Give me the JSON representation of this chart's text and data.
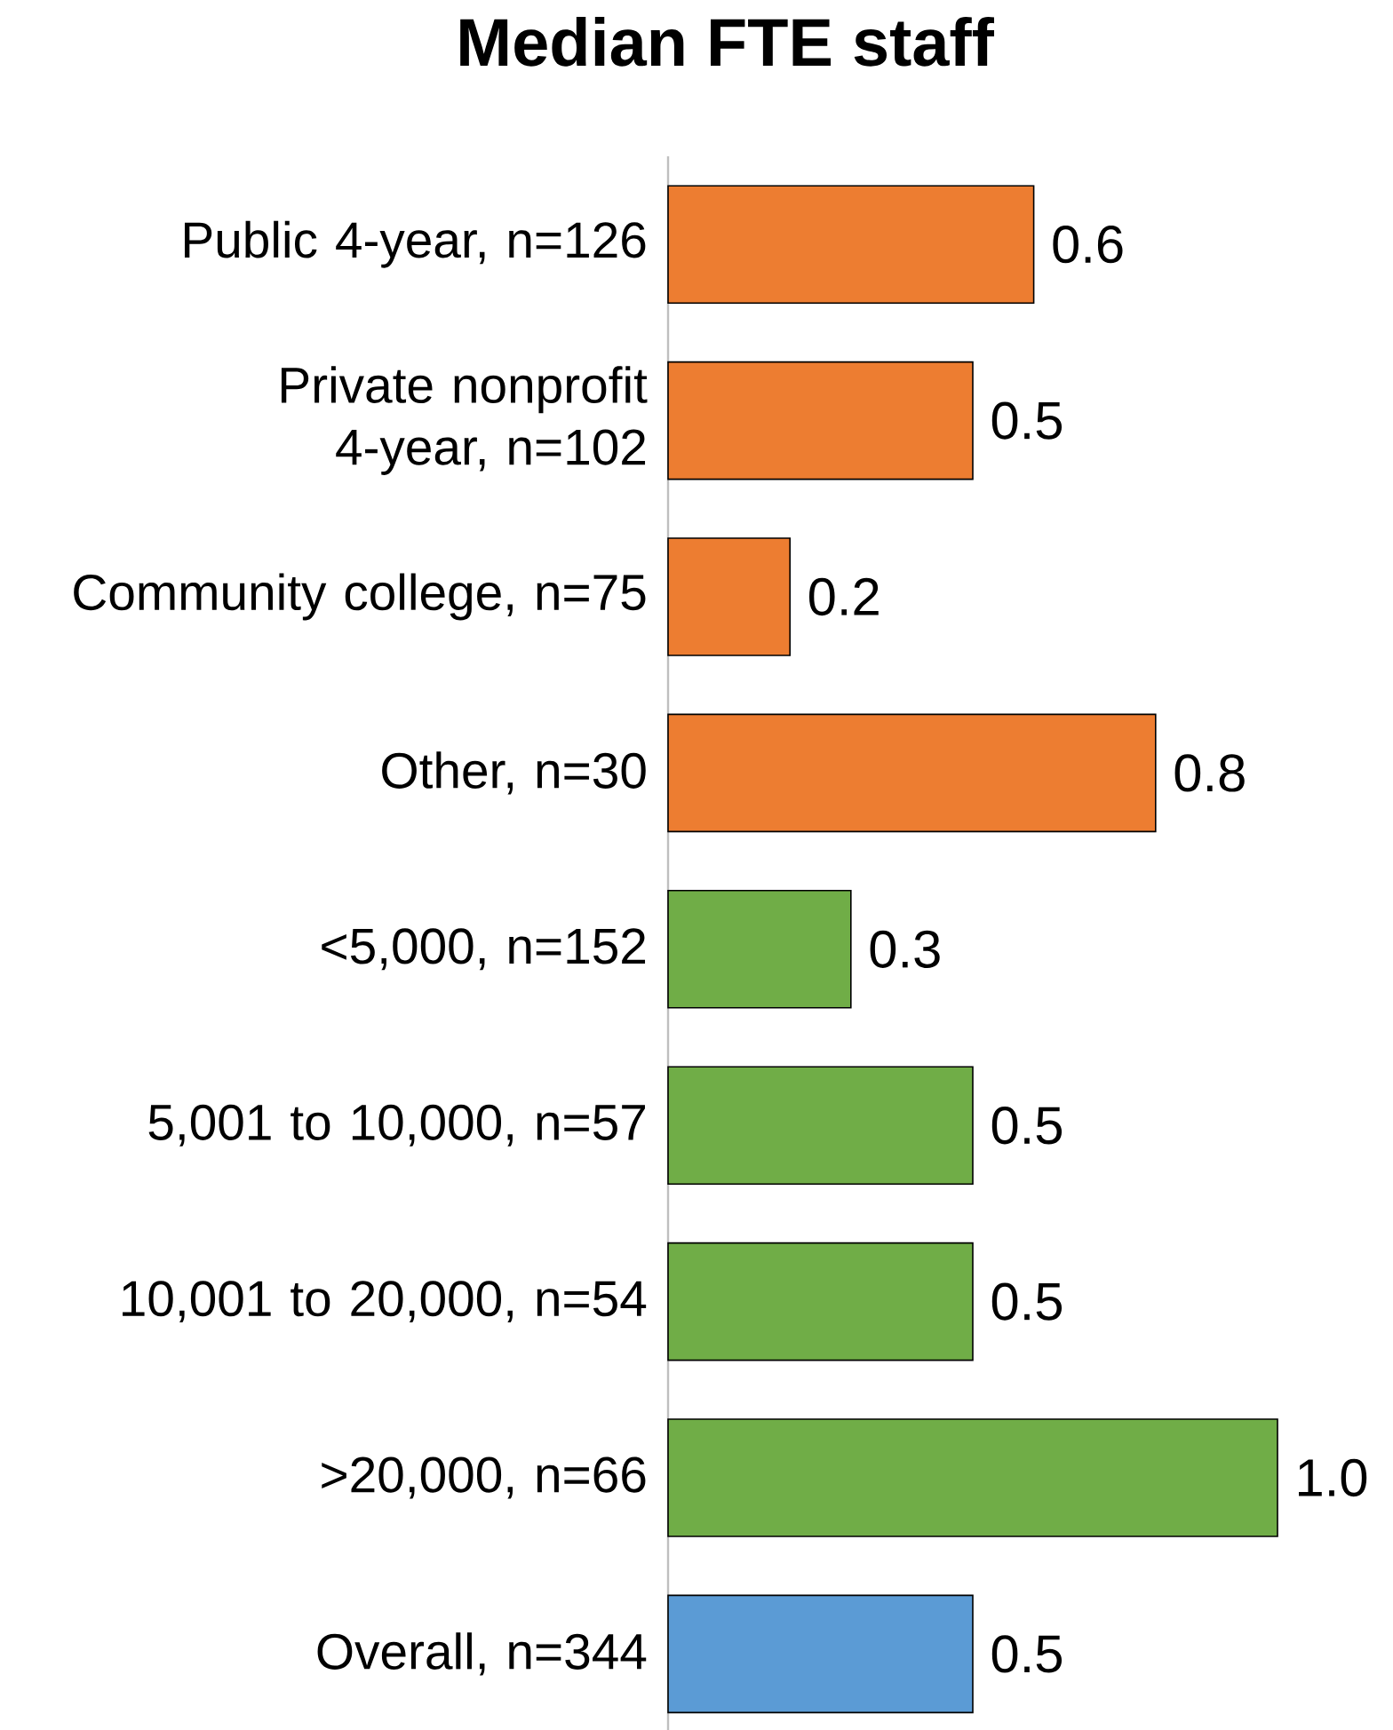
{
  "chart_data": {
    "type": "bar",
    "orientation": "horizontal",
    "title": "Median FTE staff",
    "categories": [
      "Public 4-year, n=126",
      "Private nonprofit 4-year, n=102",
      "Community college, n=75",
      "Other, n=30",
      "<5,000, n=152",
      "5,001 to 10,000, n=57",
      "10,001 to 20,000, n=54",
      ">20,000, n=66",
      "Overall, n=344"
    ],
    "values": [
      0.6,
      0.5,
      0.2,
      0.8,
      0.3,
      0.5,
      0.5,
      1.0,
      0.5
    ],
    "value_labels": [
      "0.6",
      "0.5",
      "0.2",
      "0.8",
      "0.3",
      "0.5",
      "0.5",
      "1.0",
      "0.5"
    ],
    "colors": [
      "#ed7d31",
      "#ed7d31",
      "#ed7d31",
      "#ed7d31",
      "#70ad47",
      "#70ad47",
      "#70ad47",
      "#70ad47",
      "#5b9bd5"
    ],
    "tick_labels": "y"
  }
}
